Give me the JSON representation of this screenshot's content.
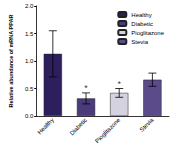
{
  "chart_data": {
    "type": "bar",
    "y_label": "Relative abundance of mRNA PPAR",
    "categories": [
      "Healthy",
      "Diabetic",
      "Pioglitazone",
      "Stevia"
    ],
    "values": [
      1.13,
      0.32,
      0.42,
      0.66
    ],
    "errors": [
      0.42,
      0.1,
      0.08,
      0.12
    ],
    "colors": [
      "#2d1f5e",
      "#4b3b7c",
      "#d3d2de",
      "#5b4b8a"
    ],
    "annotations": [
      {
        "category": "Diabetic",
        "text": "*"
      },
      {
        "category": "Pioglitazone",
        "text": "*"
      }
    ],
    "ylim": [
      0,
      2
    ],
    "yticks": [
      {
        "value": 0,
        "label": "0.0"
      },
      0.5,
      {
        "value": 1,
        "label": "1.0"
      },
      1.5,
      {
        "value": 2,
        "label": "2.0"
      }
    ],
    "grid": false,
    "legend": "top-right"
  }
}
